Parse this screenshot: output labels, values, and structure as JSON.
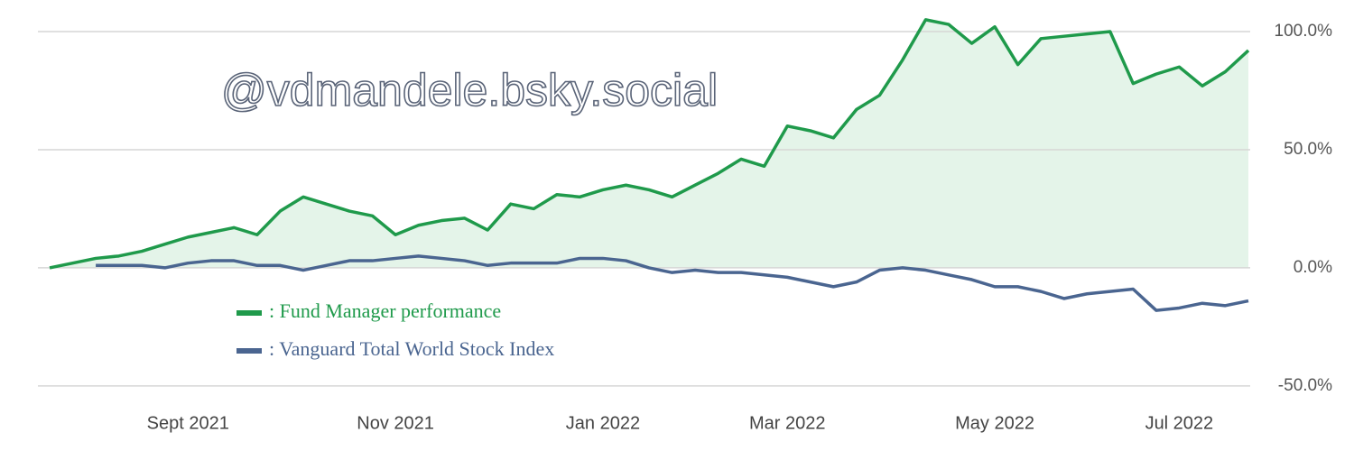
{
  "chart_data": {
    "type": "line",
    "annotation": "@vdmandele.bsky.social",
    "categories": [
      null,
      null,
      null,
      null,
      null,
      null,
      "Sept 2021",
      null,
      null,
      null,
      null,
      null,
      null,
      null,
      null,
      "Nov 2021",
      null,
      null,
      null,
      null,
      null,
      null,
      null,
      null,
      "Jan 2022",
      null,
      null,
      null,
      null,
      null,
      null,
      null,
      "Mar 2022",
      null,
      null,
      null,
      null,
      null,
      null,
      null,
      null,
      "May 2022",
      null,
      null,
      null,
      null,
      null,
      null,
      null,
      "Jul 2022",
      null,
      null,
      null
    ],
    "series": [
      {
        "name": ": Fund Manager performance",
        "color": "#1f9a4b",
        "fill": "#e4f4e9",
        "values": [
          0,
          2,
          4,
          5,
          7,
          10,
          13,
          15,
          17,
          14,
          24,
          30,
          27,
          24,
          22,
          14,
          18,
          20,
          21,
          16,
          27,
          25,
          31,
          30,
          33,
          35,
          33,
          30,
          35,
          40,
          46,
          43,
          60,
          58,
          55,
          67,
          73,
          88,
          105,
          103,
          95,
          102,
          86,
          97,
          98,
          99,
          100,
          78,
          82,
          85,
          77,
          83,
          92
        ]
      },
      {
        "name": ": Vanguard Total World Stock Index",
        "color": "#4a6590",
        "values": [
          null,
          null,
          1,
          1,
          1,
          0,
          2,
          3,
          3,
          1,
          1,
          -1,
          1,
          3,
          3,
          4,
          5,
          4,
          3,
          1,
          2,
          2,
          2,
          4,
          4,
          3,
          0,
          -2,
          -1,
          -2,
          -2,
          -3,
          -4,
          -6,
          -8,
          -6,
          -1,
          0,
          -1,
          -3,
          -5,
          -8,
          -8,
          -10,
          -13,
          -11,
          -10,
          -9,
          -18,
          -17,
          -15,
          -16,
          -14
        ]
      }
    ],
    "ylim": [
      -55,
      108
    ],
    "yticks": [
      {
        "value": -50,
        "label": "-50.0%"
      },
      {
        "value": 0,
        "label": "0.0%"
      },
      {
        "value": 50,
        "label": "50.0%"
      },
      {
        "value": 100,
        "label": "100.0%"
      }
    ],
    "grid": true
  }
}
